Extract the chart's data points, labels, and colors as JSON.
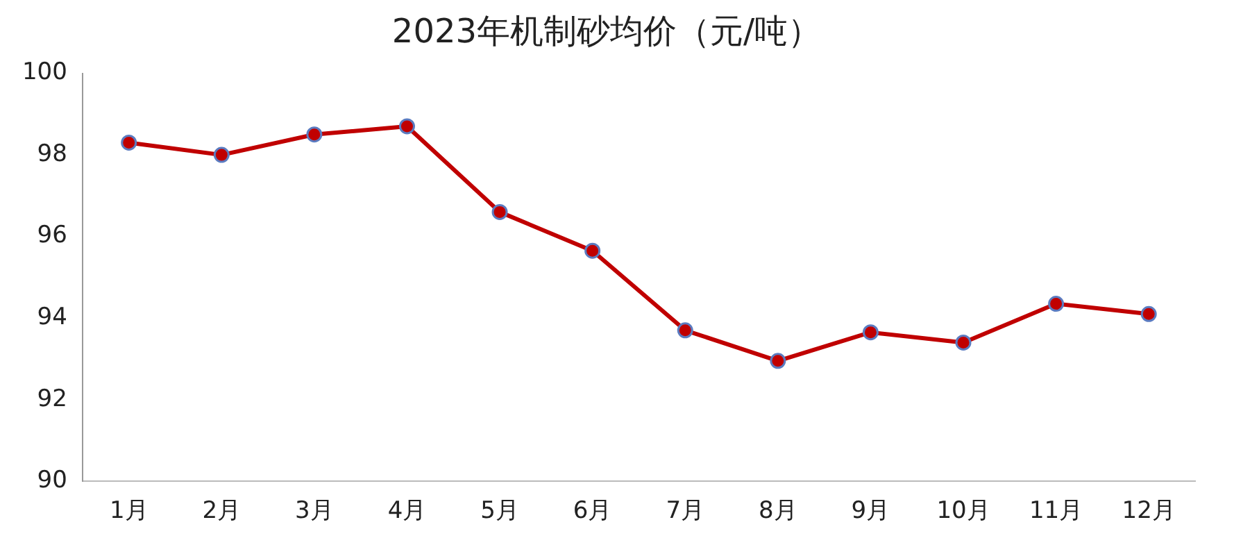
{
  "chart_data": {
    "type": "line",
    "title": "2023年机制砂均价（元/吨）",
    "categories": [
      "1月",
      "2月",
      "3月",
      "4月",
      "5月",
      "6月",
      "7月",
      "8月",
      "9月",
      "10月",
      "11月",
      "12月"
    ],
    "series": [
      {
        "color": "#c00000",
        "values": [
          98.3,
          98.0,
          98.5,
          98.7,
          96.6,
          95.65,
          93.7,
          92.95,
          93.65,
          93.4,
          94.35,
          94.1
        ]
      }
    ],
    "ylim": [
      90,
      100
    ],
    "yticks": [
      90,
      92,
      94,
      96,
      98,
      100
    ],
    "grid": false,
    "legend": false,
    "marker": "circle",
    "line_style": "solid"
  }
}
